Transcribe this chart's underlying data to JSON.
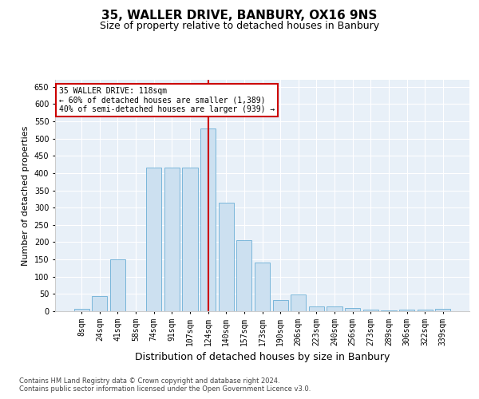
{
  "title1": "35, WALLER DRIVE, BANBURY, OX16 9NS",
  "title2": "Size of property relative to detached houses in Banbury",
  "xlabel": "Distribution of detached houses by size in Banbury",
  "ylabel": "Number of detached properties",
  "categories": [
    "8sqm",
    "24sqm",
    "41sqm",
    "58sqm",
    "74sqm",
    "91sqm",
    "107sqm",
    "124sqm",
    "140sqm",
    "157sqm",
    "173sqm",
    "190sqm",
    "206sqm",
    "223sqm",
    "240sqm",
    "256sqm",
    "273sqm",
    "289sqm",
    "306sqm",
    "322sqm",
    "339sqm"
  ],
  "values": [
    7,
    44,
    150,
    0,
    415,
    415,
    415,
    530,
    315,
    205,
    140,
    33,
    48,
    14,
    13,
    9,
    4,
    2,
    5,
    4,
    6
  ],
  "bar_color": "#cce0f0",
  "bar_edge_color": "#6aaed6",
  "vline_color": "#cc0000",
  "vline_x": 7.0,
  "annotation_text": "35 WALLER DRIVE: 118sqm\n← 60% of detached houses are smaller (1,389)\n40% of semi-detached houses are larger (939) →",
  "annotation_box_facecolor": "#ffffff",
  "annotation_box_edgecolor": "#cc0000",
  "footer1": "Contains HM Land Registry data © Crown copyright and database right 2024.",
  "footer2": "Contains public sector information licensed under the Open Government Licence v3.0.",
  "ylim": [
    0,
    670
  ],
  "yticks": [
    0,
    50,
    100,
    150,
    200,
    250,
    300,
    350,
    400,
    450,
    500,
    550,
    600,
    650
  ],
  "bg_color": "#e8f0f8",
  "fig_bg": "#ffffff",
  "title1_fontsize": 11,
  "title2_fontsize": 9,
  "xlabel_fontsize": 9,
  "ylabel_fontsize": 8,
  "tick_fontsize": 7,
  "ann_fontsize": 7,
  "footer_fontsize": 6
}
